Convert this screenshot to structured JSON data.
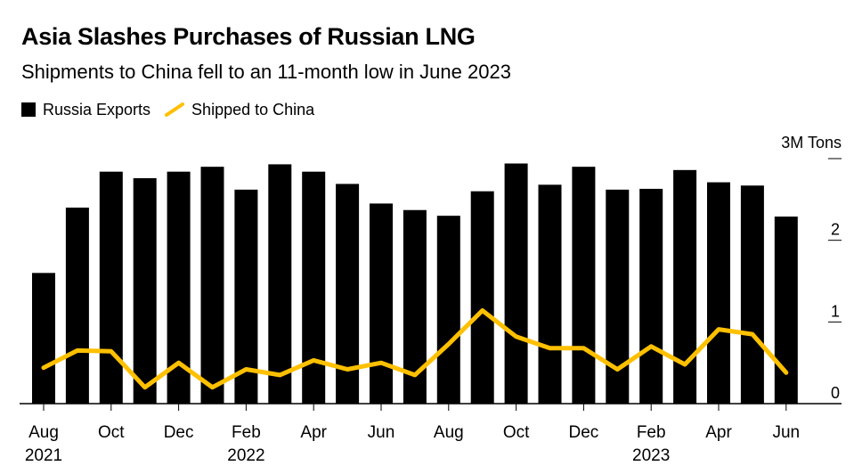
{
  "chart_data": {
    "type": "bar",
    "title": "Asia Slashes Purchases of Russian LNG",
    "subtitle": "Shipments to China fell to an 11-month low in June 2023",
    "unit_label": "3M Tons",
    "categories": [
      "Aug 2021",
      "Sep 2021",
      "Oct 2021",
      "Nov 2021",
      "Dec 2021",
      "Jan 2022",
      "Feb 2022",
      "Mar 2022",
      "Apr 2022",
      "May 2022",
      "Jun 2022",
      "Jul 2022",
      "Aug 2022",
      "Sep 2022",
      "Oct 2022",
      "Nov 2022",
      "Dec 2022",
      "Jan 2023",
      "Feb 2023",
      "Mar 2023",
      "Apr 2023",
      "May 2023",
      "Jun 2023"
    ],
    "series": [
      {
        "name": "Russia Exports",
        "type": "bar",
        "color": "#000000",
        "values": [
          1.6,
          2.4,
          2.84,
          2.76,
          2.84,
          2.9,
          2.62,
          2.93,
          2.84,
          2.69,
          2.45,
          2.37,
          2.3,
          2.6,
          2.94,
          2.68,
          2.9,
          2.62,
          2.63,
          2.86,
          2.71,
          2.67,
          2.29
        ]
      },
      {
        "name": "Shipped to China",
        "type": "line",
        "color": "#ffc000",
        "values": [
          0.44,
          0.65,
          0.64,
          0.2,
          0.5,
          0.2,
          0.42,
          0.35,
          0.53,
          0.42,
          0.5,
          0.35,
          0.73,
          1.14,
          0.82,
          0.68,
          0.68,
          0.42,
          0.7,
          0.48,
          0.91,
          0.85,
          0.38
        ]
      }
    ],
    "ylim": [
      0,
      3
    ],
    "yticks": [
      {
        "value": 0,
        "label": "0"
      },
      {
        "value": 1,
        "label": "1"
      },
      {
        "value": 2,
        "label": "2"
      },
      {
        "value": 3,
        "label": ""
      }
    ],
    "xticks": [
      {
        "index": 0,
        "label": "Aug",
        "year": "2021"
      },
      {
        "index": 2,
        "label": "Oct",
        "year": ""
      },
      {
        "index": 4,
        "label": "Dec",
        "year": ""
      },
      {
        "index": 6,
        "label": "Feb",
        "year": "2022"
      },
      {
        "index": 8,
        "label": "Apr",
        "year": ""
      },
      {
        "index": 10,
        "label": "Jun",
        "year": ""
      },
      {
        "index": 12,
        "label": "Aug",
        "year": ""
      },
      {
        "index": 14,
        "label": "Oct",
        "year": ""
      },
      {
        "index": 16,
        "label": "Dec",
        "year": ""
      },
      {
        "index": 18,
        "label": "Feb",
        "year": "2023"
      },
      {
        "index": 20,
        "label": "Apr",
        "year": ""
      },
      {
        "index": 22,
        "label": "Jun",
        "year": ""
      }
    ],
    "legend": {
      "position": "top-left"
    }
  }
}
